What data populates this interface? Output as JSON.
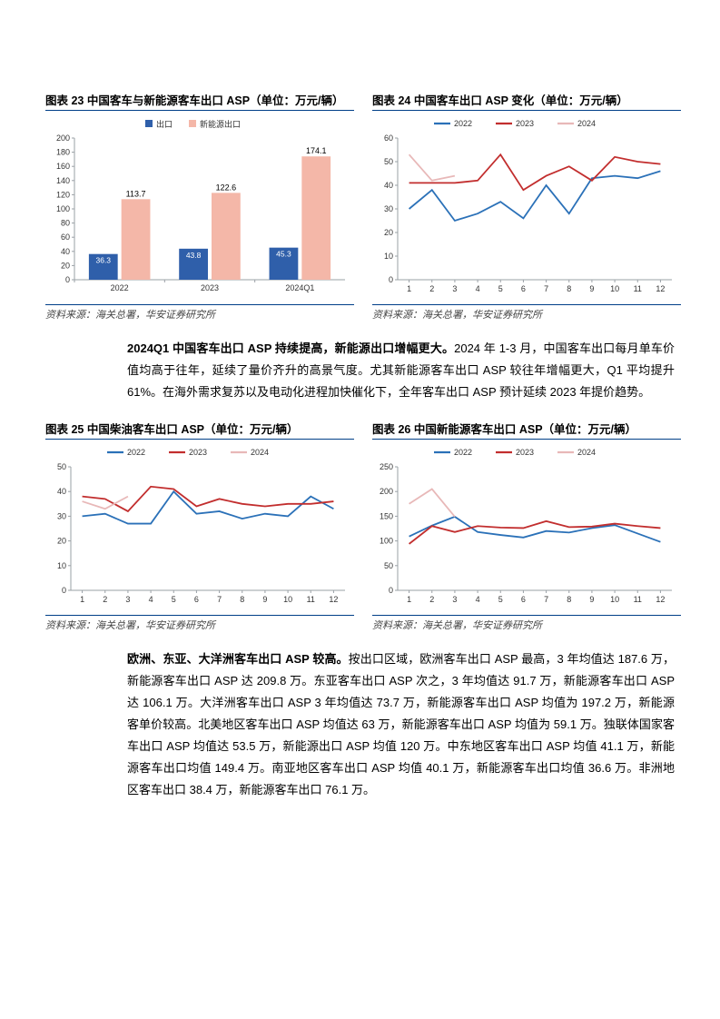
{
  "chart23": {
    "title": "图表 23  中国客车与新能源客车出口 ASP（单位：万元/辆）",
    "source": "资料来源：海关总署，华安证券研究所",
    "type": "bar",
    "legend": [
      "出口",
      "新能源出口"
    ],
    "categories": [
      "2022",
      "2023",
      "2024Q1"
    ],
    "export_values": [
      36.3,
      43.8,
      45.3
    ],
    "nev_values": [
      113.7,
      122.6,
      174.1
    ],
    "export_labels": [
      "36.3",
      "43.8",
      "45.3"
    ],
    "nev_labels": [
      "113.7",
      "122.6",
      "174.1"
    ],
    "colors": {
      "export": "#2f5faa",
      "nev": "#f4b7a8"
    },
    "ylim": [
      0,
      200
    ],
    "ytick_step": 20,
    "background_color": "#ffffff",
    "axis_color": "#9aa0a6",
    "grid_color": "#e0e0e0",
    "label_fontsize": 9,
    "bar_width": 0.32
  },
  "chart24": {
    "title": "图表 24 中国客车出口 ASP 变化（单位：万元/辆）",
    "source": "资料来源：海关总署，华安证券研究所",
    "type": "line",
    "legend": [
      "2022",
      "2023",
      "2024"
    ],
    "x_labels": [
      "1",
      "2",
      "3",
      "4",
      "5",
      "6",
      "7",
      "8",
      "9",
      "10",
      "11",
      "12"
    ],
    "series": {
      "2022": [
        30,
        38,
        25,
        28,
        33,
        26,
        40,
        28,
        43,
        44,
        43,
        46
      ],
      "2023": [
        41,
        41,
        41,
        42,
        53,
        38,
        44,
        48,
        42,
        52,
        50,
        49
      ],
      "2024": [
        53,
        42,
        44
      ]
    },
    "colors": {
      "2022": "#2b71b8",
      "2023": "#c22e2e",
      "2024": "#e8b8b8"
    },
    "ylim": [
      0,
      60
    ],
    "ytick_step": 10,
    "line_width": 1.8,
    "label_fontsize": 9,
    "axis_color": "#9aa0a6"
  },
  "para1": {
    "bold": "2024Q1 中国客车出口 ASP 持续提高，新能源出口增幅更大。",
    "rest": "2024 年 1-3 月，中国客车出口每月单车价值均高于往年，延续了量价齐升的高景气度。尤其新能源客车出口 ASP 较往年增幅更大，Q1 平均提升 61%。在海外需求复苏以及电动化进程加快催化下，全年客车出口 ASP 预计延续 2023 年提价趋势。"
  },
  "chart25": {
    "title": "图表 25 中国柴油客车出口 ASP（单位：万元/辆）",
    "source": "资料来源：海关总署，华安证券研究所",
    "type": "line",
    "legend": [
      "2022",
      "2023",
      "2024"
    ],
    "x_labels": [
      "1",
      "2",
      "3",
      "4",
      "5",
      "6",
      "7",
      "8",
      "9",
      "10",
      "11",
      "12"
    ],
    "series": {
      "2022": [
        30,
        31,
        27,
        27,
        40,
        31,
        32,
        29,
        31,
        30,
        38,
        33
      ],
      "2023": [
        38,
        37,
        32,
        42,
        41,
        34,
        37,
        35,
        34,
        35,
        35,
        36
      ],
      "2024": [
        36,
        33,
        38
      ]
    },
    "colors": {
      "2022": "#2b71b8",
      "2023": "#c22e2e",
      "2024": "#e8b8b8"
    },
    "ylim": [
      0,
      50
    ],
    "ytick_step": 10,
    "line_width": 1.8,
    "label_fontsize": 9,
    "axis_color": "#9aa0a6"
  },
  "chart26": {
    "title": "图表 26 中国新能源客车出口 ASP（单位：万元/辆）",
    "source": "资料来源：海关总署，华安证券研究所",
    "type": "line",
    "legend": [
      "2022",
      "2023",
      "2024"
    ],
    "x_labels": [
      "1",
      "2",
      "3",
      "4",
      "5",
      "6",
      "7",
      "8",
      "9",
      "10",
      "11",
      "12"
    ],
    "series": {
      "2022": [
        109,
        131,
        149,
        118,
        112,
        107,
        120,
        117,
        126,
        132,
        115,
        98
      ],
      "2023": [
        94,
        130,
        118,
        130,
        127,
        126,
        140,
        128,
        129,
        135,
        130,
        126
      ],
      "2024": [
        175,
        205,
        149
      ]
    },
    "colors": {
      "2022": "#2b71b8",
      "2023": "#c22e2e",
      "2024": "#e8b8b8"
    },
    "ylim": [
      0,
      250
    ],
    "ytick_step": 50,
    "line_width": 1.8,
    "label_fontsize": 9,
    "axis_color": "#9aa0a6"
  },
  "para2": {
    "bold": "欧洲、东亚、大洋洲客车出口 ASP 较高。",
    "rest": "按出口区域，欧洲客车出口 ASP 最高，3 年均值达 187.6 万，新能源客车出口 ASP 达 209.8 万。东亚客车出口 ASP 次之，3 年均值达 91.7 万，新能源客车出口 ASP 达 106.1 万。大洋洲客车出口 ASP 3 年均值达 73.7 万，新能源客车出口 ASP 均值为 197.2 万，新能源客单价较高。北美地区客车出口 ASP 均值达 63 万，新能源客车出口 ASP 均值为 59.1 万。独联体国家客车出口 ASP 均值达 53.5 万，新能源出口 ASP 均值 120 万。中东地区客车出口 ASP 均值 41.1 万，新能源客车出口均值 149.4 万。南亚地区客车出口 ASP 均值 40.1 万，新能源客车出口均值 36.6 万。非洲地区客车出口 38.4 万，新能源客车出口 76.1 万。"
  }
}
